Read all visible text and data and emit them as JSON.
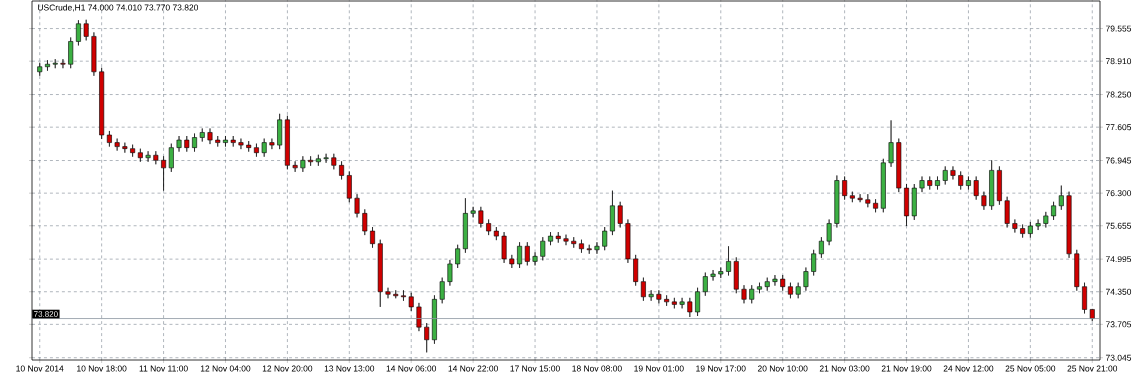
{
  "chart_data": {
    "type": "candlestick",
    "title": "USCrude,H1 74.000 74.010 73.770 73.820",
    "categories": [
      "10 Nov 2014",
      null,
      null,
      null,
      null,
      null,
      null,
      null,
      "10 Nov 18:00",
      null,
      null,
      null,
      null,
      null,
      null,
      null,
      "11 Nov 11:00",
      null,
      null,
      null,
      null,
      null,
      null,
      null,
      "12 Nov 04:00",
      null,
      null,
      null,
      null,
      null,
      null,
      null,
      "12 Nov 20:00",
      null,
      null,
      null,
      null,
      null,
      null,
      null,
      "13 Nov 13:00",
      null,
      null,
      null,
      null,
      null,
      null,
      null,
      "14 Nov 06:00",
      null,
      null,
      null,
      null,
      null,
      null,
      null,
      "14 Nov 22:00",
      null,
      null,
      null,
      null,
      null,
      null,
      null,
      "17 Nov 15:00",
      null,
      null,
      null,
      null,
      null,
      null,
      null,
      "18 Nov 08:00",
      null,
      null,
      null,
      null,
      null,
      null,
      null,
      "19 Nov 01:00",
      null,
      null,
      null,
      null,
      null,
      null,
      null,
      "19 Nov 17:00",
      null,
      null,
      null,
      null,
      null,
      null,
      null,
      "20 Nov 10:00",
      null,
      null,
      null,
      null,
      null,
      null,
      null,
      "21 Nov 03:00",
      null,
      null,
      null,
      null,
      null,
      null,
      null,
      "21 Nov 19:00",
      null,
      null,
      null,
      null,
      null,
      null,
      null,
      "24 Nov 12:00",
      null,
      null,
      null,
      null,
      null,
      null,
      null,
      "25 Nov 05:00",
      null,
      null,
      null,
      null,
      null,
      null,
      null,
      "25 Nov 21:00"
    ],
    "ohlc": [
      [
        78.7,
        78.88,
        78.62,
        78.8
      ],
      [
        78.8,
        78.93,
        78.72,
        78.85
      ],
      [
        78.85,
        78.95,
        78.77,
        78.87
      ],
      [
        78.87,
        78.95,
        78.77,
        78.85
      ],
      [
        78.85,
        79.38,
        78.77,
        79.3
      ],
      [
        79.3,
        79.72,
        79.22,
        79.65
      ],
      [
        79.65,
        79.73,
        79.32,
        79.4
      ],
      [
        79.4,
        79.48,
        78.62,
        78.7
      ],
      [
        78.7,
        78.78,
        77.37,
        77.45
      ],
      [
        77.45,
        77.53,
        77.22,
        77.3
      ],
      [
        77.3,
        77.38,
        77.14,
        77.22
      ],
      [
        77.22,
        77.3,
        77.1,
        77.18
      ],
      [
        77.18,
        77.26,
        77.02,
        77.1
      ],
      [
        77.1,
        77.18,
        76.92,
        77.0
      ],
      [
        77.0,
        77.13,
        76.92,
        77.05
      ],
      [
        77.05,
        77.13,
        76.87,
        76.95
      ],
      [
        76.95,
        77.03,
        76.35,
        76.8
      ],
      [
        76.8,
        77.28,
        76.72,
        77.2
      ],
      [
        77.2,
        77.43,
        77.12,
        77.35
      ],
      [
        77.35,
        77.43,
        77.12,
        77.2
      ],
      [
        77.2,
        77.48,
        77.12,
        77.4
      ],
      [
        77.4,
        77.58,
        77.32,
        77.5
      ],
      [
        77.5,
        77.58,
        77.27,
        77.35
      ],
      [
        77.35,
        77.43,
        77.22,
        77.3
      ],
      [
        77.3,
        77.43,
        77.22,
        77.35
      ],
      [
        77.35,
        77.43,
        77.22,
        77.3
      ],
      [
        77.3,
        77.38,
        77.17,
        77.25
      ],
      [
        77.25,
        77.33,
        77.12,
        77.2
      ],
      [
        77.2,
        77.28,
        77.02,
        77.1
      ],
      [
        77.1,
        77.38,
        77.02,
        77.3
      ],
      [
        77.3,
        77.38,
        77.17,
        77.25
      ],
      [
        77.25,
        77.87,
        77.17,
        77.75
      ],
      [
        77.75,
        77.83,
        76.77,
        76.85
      ],
      [
        76.85,
        76.93,
        76.72,
        76.8
      ],
      [
        76.8,
        77.03,
        76.72,
        76.95
      ],
      [
        76.95,
        77.03,
        76.84,
        76.92
      ],
      [
        76.92,
        77.06,
        76.84,
        76.98
      ],
      [
        76.98,
        77.08,
        76.9,
        77.0
      ],
      [
        77.0,
        77.08,
        76.77,
        76.85
      ],
      [
        76.85,
        76.93,
        76.57,
        76.65
      ],
      [
        76.65,
        76.73,
        76.12,
        76.2
      ],
      [
        76.2,
        76.28,
        75.82,
        75.9
      ],
      [
        75.9,
        75.98,
        75.47,
        75.55
      ],
      [
        75.55,
        75.63,
        75.22,
        75.3
      ],
      [
        75.3,
        75.38,
        74.05,
        74.35
      ],
      [
        74.35,
        74.43,
        74.22,
        74.3
      ],
      [
        74.3,
        74.38,
        74.22,
        74.27
      ],
      [
        74.27,
        74.38,
        74.17,
        74.25
      ],
      [
        74.25,
        74.33,
        73.97,
        74.05
      ],
      [
        74.05,
        74.13,
        73.57,
        73.65
      ],
      [
        73.65,
        73.73,
        73.15,
        73.4
      ],
      [
        73.4,
        74.28,
        73.32,
        74.2
      ],
      [
        74.2,
        74.63,
        74.12,
        74.55
      ],
      [
        74.55,
        74.98,
        74.47,
        74.9
      ],
      [
        74.9,
        75.28,
        74.82,
        75.2
      ],
      [
        75.2,
        76.2,
        75.12,
        75.9
      ],
      [
        75.9,
        76.03,
        75.82,
        75.95
      ],
      [
        75.95,
        76.03,
        75.62,
        75.7
      ],
      [
        75.7,
        75.78,
        75.47,
        75.55
      ],
      [
        75.55,
        75.63,
        75.37,
        75.45
      ],
      [
        75.45,
        75.53,
        74.92,
        75.0
      ],
      [
        75.0,
        75.08,
        74.82,
        74.9
      ],
      [
        74.9,
        75.33,
        74.82,
        75.25
      ],
      [
        75.25,
        75.33,
        74.87,
        74.95
      ],
      [
        74.95,
        75.13,
        74.87,
        75.05
      ],
      [
        75.05,
        75.43,
        74.97,
        75.35
      ],
      [
        75.35,
        75.53,
        75.27,
        75.45
      ],
      [
        75.45,
        75.53,
        75.32,
        75.4
      ],
      [
        75.4,
        75.48,
        75.27,
        75.35
      ],
      [
        75.35,
        75.43,
        75.22,
        75.3
      ],
      [
        75.3,
        75.38,
        75.12,
        75.2
      ],
      [
        75.2,
        75.28,
        75.1,
        75.18
      ],
      [
        75.18,
        75.33,
        75.1,
        75.25
      ],
      [
        75.25,
        75.63,
        75.17,
        75.55
      ],
      [
        75.55,
        76.35,
        75.47,
        76.05
      ],
      [
        76.05,
        76.13,
        75.62,
        75.7
      ],
      [
        75.7,
        75.78,
        74.92,
        75.0
      ],
      [
        75.0,
        75.08,
        74.47,
        74.55
      ],
      [
        74.55,
        74.63,
        74.17,
        74.25
      ],
      [
        74.25,
        74.38,
        74.17,
        74.3
      ],
      [
        74.3,
        74.38,
        74.12,
        74.2
      ],
      [
        74.2,
        74.28,
        74.07,
        74.15
      ],
      [
        74.15,
        74.23,
        74.02,
        74.1
      ],
      [
        74.1,
        74.23,
        74.02,
        74.15
      ],
      [
        74.15,
        74.23,
        73.85,
        73.95
      ],
      [
        73.95,
        74.43,
        73.87,
        74.35
      ],
      [
        74.35,
        74.73,
        74.27,
        74.65
      ],
      [
        74.65,
        74.78,
        74.57,
        74.7
      ],
      [
        74.7,
        74.83,
        74.62,
        74.75
      ],
      [
        74.75,
        75.25,
        74.67,
        74.95
      ],
      [
        74.95,
        75.03,
        74.32,
        74.4
      ],
      [
        74.4,
        74.48,
        74.12,
        74.2
      ],
      [
        74.2,
        74.48,
        74.12,
        74.4
      ],
      [
        74.4,
        74.53,
        74.32,
        74.45
      ],
      [
        74.45,
        74.63,
        74.37,
        74.55
      ],
      [
        74.55,
        74.68,
        74.47,
        74.6
      ],
      [
        74.6,
        74.68,
        74.37,
        74.45
      ],
      [
        74.45,
        74.53,
        74.22,
        74.3
      ],
      [
        74.3,
        74.53,
        74.22,
        74.45
      ],
      [
        74.45,
        74.83,
        74.37,
        74.75
      ],
      [
        74.75,
        75.18,
        74.67,
        75.1
      ],
      [
        75.1,
        75.43,
        75.02,
        75.35
      ],
      [
        75.35,
        75.78,
        75.27,
        75.7
      ],
      [
        75.7,
        76.65,
        75.62,
        76.55
      ],
      [
        76.55,
        76.63,
        76.17,
        76.25
      ],
      [
        76.25,
        76.33,
        76.12,
        76.2
      ],
      [
        76.2,
        76.28,
        76.12,
        76.17
      ],
      [
        76.17,
        76.28,
        76.02,
        76.1
      ],
      [
        76.1,
        76.18,
        75.92,
        76.0
      ],
      [
        76.0,
        76.98,
        75.92,
        76.9
      ],
      [
        76.9,
        77.74,
        76.82,
        77.3
      ],
      [
        77.3,
        77.38,
        76.32,
        76.4
      ],
      [
        76.4,
        76.48,
        75.65,
        75.85
      ],
      [
        75.85,
        76.48,
        75.77,
        76.4
      ],
      [
        76.4,
        76.63,
        76.32,
        76.55
      ],
      [
        76.55,
        76.63,
        76.37,
        76.45
      ],
      [
        76.45,
        76.63,
        76.37,
        76.55
      ],
      [
        76.55,
        76.83,
        76.47,
        76.75
      ],
      [
        76.75,
        76.83,
        76.57,
        76.65
      ],
      [
        76.65,
        76.73,
        76.37,
        76.45
      ],
      [
        76.45,
        76.63,
        76.37,
        76.55
      ],
      [
        76.55,
        76.63,
        76.17,
        76.25
      ],
      [
        76.25,
        76.33,
        75.97,
        76.05
      ],
      [
        76.05,
        76.95,
        75.97,
        76.75
      ],
      [
        76.75,
        76.83,
        76.07,
        76.15
      ],
      [
        76.15,
        76.23,
        75.62,
        75.7
      ],
      [
        75.7,
        75.78,
        75.52,
        75.6
      ],
      [
        75.6,
        75.68,
        75.42,
        75.5
      ],
      [
        75.5,
        75.73,
        75.42,
        75.65
      ],
      [
        75.65,
        75.78,
        75.57,
        75.7
      ],
      [
        75.7,
        75.93,
        75.62,
        75.85
      ],
      [
        75.85,
        76.13,
        75.77,
        76.05
      ],
      [
        76.05,
        76.45,
        75.97,
        76.25
      ],
      [
        76.25,
        76.33,
        75.02,
        75.1
      ],
      [
        75.1,
        75.18,
        74.37,
        74.45
      ],
      [
        74.45,
        74.53,
        73.92,
        74.0
      ],
      [
        74.0,
        74.01,
        73.77,
        73.82
      ]
    ],
    "ylim": [
      73.0,
      80.1
    ],
    "yticks": [
      {
        "value": 73.045,
        "label": "73.045"
      },
      {
        "value": 73.705,
        "label": "73.705"
      },
      {
        "value": 74.35,
        "label": "74.350"
      },
      {
        "value": 74.995,
        "label": "74.995"
      },
      {
        "value": 75.655,
        "label": "75.655"
      },
      {
        "value": 76.3,
        "label": "76.300"
      },
      {
        "value": 76.945,
        "label": "76.945"
      },
      {
        "value": 77.605,
        "label": "77.605"
      },
      {
        "value": 78.25,
        "label": "78.250"
      },
      {
        "value": 78.91,
        "label": "78.910"
      },
      {
        "value": 79.555,
        "label": "79.555"
      }
    ],
    "ref_lines": [
      {
        "axis": "y",
        "value": 73.82,
        "label": "73.820",
        "color": "#8c96a0"
      }
    ],
    "grid": true
  }
}
